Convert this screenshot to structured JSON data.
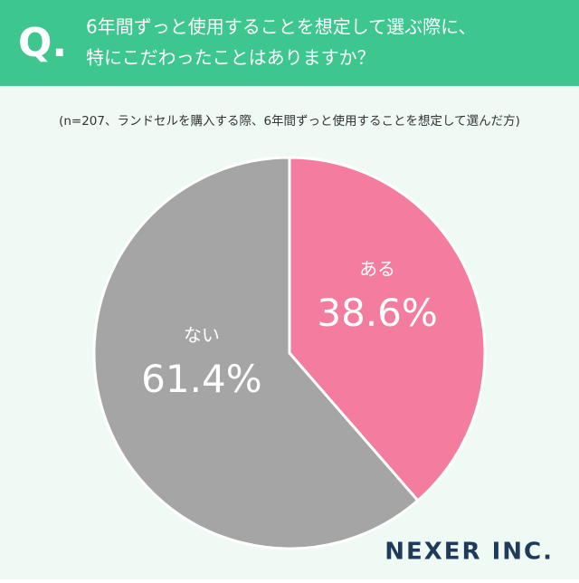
{
  "chart_data": {
    "type": "pie",
    "question_mark": "Q.",
    "title": [
      "6年間ずっと使用することを想定して選ぶ際に、",
      "特にこだわったことはありますか？"
    ],
    "subtitle": "(n=207、ランドセルを購入する際、6年間ずっと使用することを想定して選んだ方)",
    "categories": [
      "ある",
      "ない"
    ],
    "values": [
      38.6,
      61.4
    ],
    "value_labels": [
      "38.6%",
      "61.4%"
    ],
    "colors": [
      "#f47c9e",
      "#a5a5a5"
    ],
    "logo": "NEXER INC."
  }
}
